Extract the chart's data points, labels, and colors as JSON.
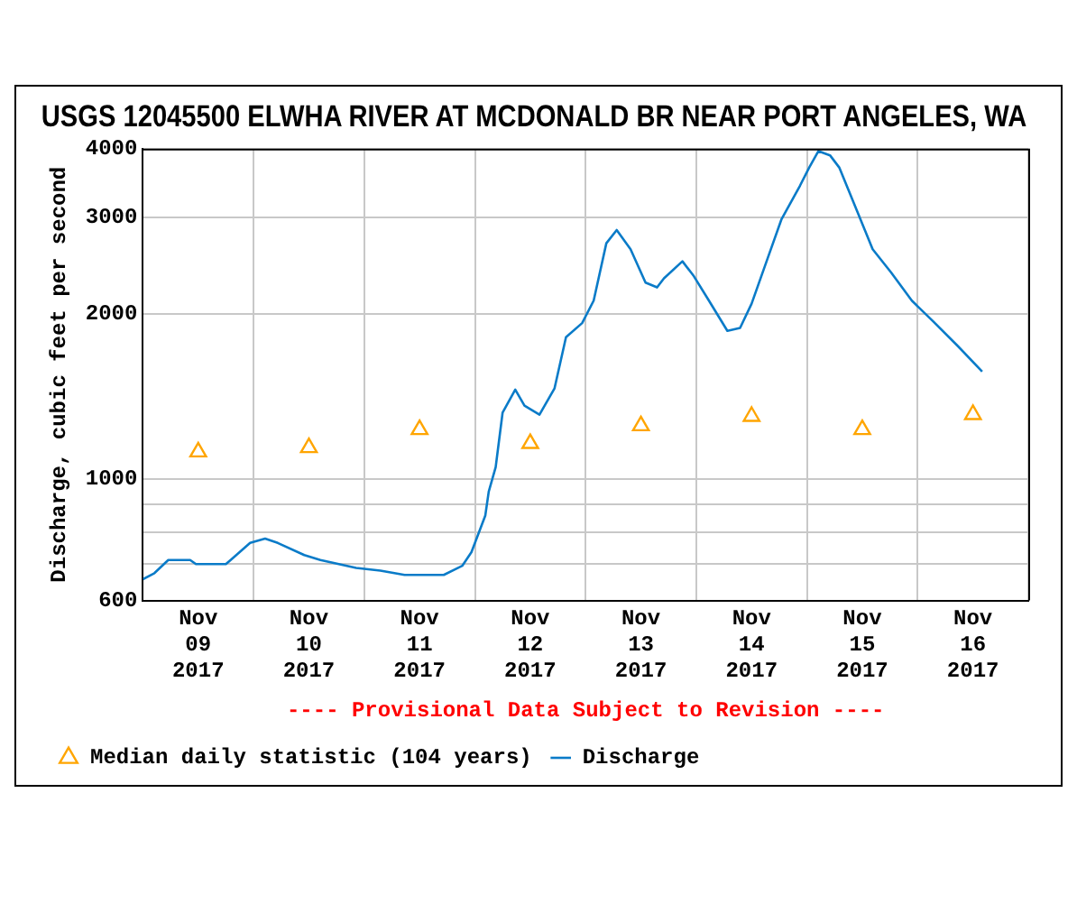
{
  "chart_data": {
    "type": "line",
    "title": "USGS 12045500 ELWHA RIVER AT MCDONALD BR NEAR PORT ANGELES, WA",
    "ylabel": "Discharge, cubic feet per second",
    "annotations": [
      "---- Provisional Data Subject to Revision ----"
    ],
    "log": "y",
    "grid": true,
    "legend": "bottom",
    "xlim": [
      "2017-11-09T00:00",
      "2017-11-17T00:00"
    ],
    "xticks": [
      {
        "value": "2017-11-09T00:00",
        "label": null
      },
      {
        "value": "2017-11-09T12:00",
        "label": "Nov 09 2017"
      },
      {
        "value": "2017-11-10T00:00",
        "label": null
      },
      {
        "value": "2017-11-10T12:00",
        "label": "Nov 10 2017"
      },
      {
        "value": "2017-11-11T00:00",
        "label": null
      },
      {
        "value": "2017-11-11T12:00",
        "label": "Nov 11 2017"
      },
      {
        "value": "2017-11-12T00:00",
        "label": null
      },
      {
        "value": "2017-11-12T12:00",
        "label": "Nov 12 2017"
      },
      {
        "value": "2017-11-13T00:00",
        "label": null
      },
      {
        "value": "2017-11-13T12:00",
        "label": "Nov 13 2017"
      },
      {
        "value": "2017-11-14T00:00",
        "label": null
      },
      {
        "value": "2017-11-14T12:00",
        "label": "Nov 14 2017"
      },
      {
        "value": "2017-11-15T00:00",
        "label": null
      },
      {
        "value": "2017-11-15T12:00",
        "label": "Nov 15 2017"
      },
      {
        "value": "2017-11-16T00:00",
        "label": null
      },
      {
        "value": "2017-11-16T12:00",
        "label": "Nov 16 2017"
      },
      {
        "value": "2017-11-17T00:00",
        "label": null
      }
    ],
    "ylim": [
      600,
      4000
    ],
    "yticks": [
      600,
      {
        "value": 700,
        "label": null
      },
      {
        "value": 800,
        "label": null
      },
      {
        "value": 900,
        "label": null
      },
      1000,
      2000,
      3000,
      4000
    ],
    "series": [
      {
        "name": "Median daily statistic (104 years)",
        "type": "scatter",
        "marker": "triangle",
        "color": "#ffa500",
        "x": [
          "2017-11-09T12:00",
          "2017-11-10T12:00",
          "2017-11-11T12:00",
          "2017-11-12T12:00",
          "2017-11-13T12:00",
          "2017-11-14T12:00",
          "2017-11-15T12:00",
          "2017-11-16T12:00"
        ],
        "values": [
          1120,
          1140,
          1230,
          1160,
          1250,
          1300,
          1230,
          1310
        ]
      },
      {
        "name": "Discharge",
        "type": "line",
        "marker": "none",
        "color": "#0a7bc8",
        "x": [
          "2017-11-09T00:00",
          "2017-11-09T02:30",
          "2017-11-09T05:30",
          "2017-11-09T10:15",
          "2017-11-09T11:30",
          "2017-11-09T18:00",
          "2017-11-09T23:15",
          "2017-11-10T02:30",
          "2017-11-10T05:15",
          "2017-11-10T11:00",
          "2017-11-10T14:30",
          "2017-11-10T22:15",
          "2017-11-11T03:30",
          "2017-11-11T08:45",
          "2017-11-11T17:15",
          "2017-11-11T21:15",
          "2017-11-11T23:15",
          "2017-11-12T01:15",
          "2017-11-12T02:15",
          "2017-11-12T03:00",
          "2017-11-12T04:30",
          "2017-11-12T06:00",
          "2017-11-12T08:45",
          "2017-11-12T10:45",
          "2017-11-12T14:00",
          "2017-11-12T17:15",
          "2017-11-12T19:45",
          "2017-11-12T23:15",
          "2017-11-13T01:45",
          "2017-11-13T04:30",
          "2017-11-13T06:45",
          "2017-11-13T09:45",
          "2017-11-13T13:00",
          "2017-11-13T15:30",
          "2017-11-13T17:00",
          "2017-11-13T21:00",
          "2017-11-13T23:30",
          "2017-11-14T02:45",
          "2017-11-14T06:45",
          "2017-11-14T09:30",
          "2017-11-14T12:00",
          "2017-11-14T15:15",
          "2017-11-14T18:30",
          "2017-11-14T22:30",
          "2017-11-15T00:30",
          "2017-11-15T02:30",
          "2017-11-15T05:00",
          "2017-11-15T07:00",
          "2017-11-15T10:30",
          "2017-11-15T14:15",
          "2017-11-15T18:15",
          "2017-11-15T22:45",
          "2017-11-16T03:30",
          "2017-11-16T08:45",
          "2017-11-16T14:00"
        ],
        "values": [
          656,
          673,
          711,
          711,
          699,
          699,
          764,
          778,
          764,
          726,
          711,
          688,
          680,
          668,
          668,
          694,
          735,
          814,
          857,
          948,
          1050,
          1320,
          1454,
          1360,
          1309,
          1461,
          1813,
          1923,
          2113,
          2689,
          2843,
          2622,
          2280,
          2234,
          2321,
          2493,
          2340,
          2113,
          1861,
          1884,
          2086,
          2493,
          2977,
          3425,
          3697,
          3960,
          3890,
          3697,
          3134,
          2622,
          2379,
          2113,
          1932,
          1745,
          1569
        ]
      }
    ]
  }
}
